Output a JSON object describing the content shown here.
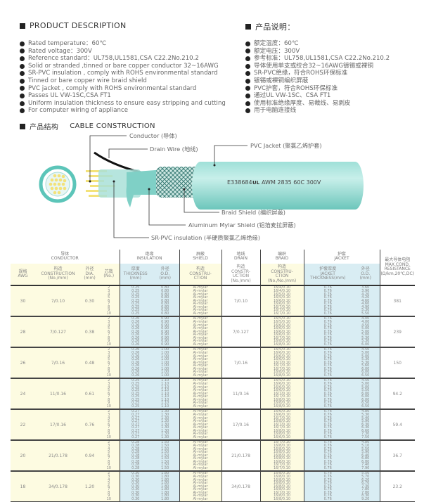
{
  "description_en": {
    "title": "PRODUCT DESCRIPTION",
    "items": [
      "Rated temperature：60℃",
      "Rated voltage：300V",
      "Reference standard：UL758,UL1581,CSA C22.2No.210.2",
      "Solid or stranded ,tinned or bare copper conductor 32~16AWG",
      "SR-PVC insulation , comply with ROHS environmental standard",
      "Tinned or bare copper wire braid shield",
      "PVC jacket , comply with ROHS environmental standard",
      "Passes UL VW-1SC,CSA FT1",
      "Uniform insulation thickness to ensure easy stripping and cutting",
      "For computer wiring of appliance"
    ]
  },
  "description_cn": {
    "title": "产品说明：",
    "items": [
      "额定温度：60℃",
      "额定电压：300V",
      "参考标准：UL758,UL1581,CSA C22.2No.210.2",
      "导体使用单支或绞合32~16AWG镀锡或裸铜",
      "SR-PVC绝缘，符合ROHS环保标准",
      "镀锡或裸铜编织屏蔽",
      "PVC护套，符合ROHS环保标准",
      "通过UL VW-1SC、CSA FT1",
      "使用标准绝缘厚度、易裁线、易剥皮",
      "用于电脑连接线"
    ]
  },
  "construction": {
    "title_cn": "产品结构",
    "title_en": "CABLE CONSTRUCTION",
    "labels": {
      "conductor": "Conductor (导体)",
      "drain": "Drain Wire (地线)",
      "jacket": "PVC Jacket (聚氯乙烯护套)",
      "braid": "Braid Shield (编织屏蔽)",
      "mylar": "Aluminum Mylar Shield (铝箔麦拉屏蔽)",
      "insulation": "SR-PVC insulation (半硬质聚氯乙烯绝缘)"
    },
    "print": {
      "code": "E338684",
      "ul_mark": "UL",
      "rating": "AWM 2835 60C 300V"
    },
    "colors": {
      "jacket": "#7fd3cb",
      "conductor": "#f3e27a",
      "drain": "#111111"
    }
  },
  "table": {
    "groups": {
      "conductor": "导体\nCONDUCTOR",
      "insulation": "绝缘\nINSULATION",
      "shield": "屏蔽\nSHIELD",
      "drain": "地线\nDRAIN",
      "braid": "编织\nBRAID",
      "jacket": "护套\nJACKET"
    },
    "columns": {
      "awg": "规格\nAWG",
      "construction": "构造\nCONSTRUCTION\n(No./mm)",
      "dia": "外径\nDIA.\n(mm)",
      "cores": "芯数\n(No.)",
      "ins_thick": "厚度\nTHICKNESS\n(mm)",
      "ins_od": "外径\nO.D.\n(mm)",
      "shield_cons": "构造\nCONSTRU-\nCTION",
      "drain_cons": "构造\nCONSTR-\nUCTION\n(No./mm)",
      "braid_cons": "构造\nCONSTRU-\nCTION\n(No./No./mm)",
      "jacket_thick": "护套厚度\nJACKET\nTHICKNESS(mm)",
      "jacket_od": "外径\nO.D.\n(mm)",
      "resistance": "最大导体电阻\nMAX.COND.\nRESISTANCE\n(Ω/km,20℃,DC)"
    },
    "rows": [
      {
        "awg": "30",
        "construction": "7/0.10",
        "dia": "0.30",
        "ins_thick": "0.25",
        "ins_od": "0.80",
        "drain": "7/0.10",
        "jacket_thick": "0.76",
        "resistance": "381",
        "braid": [
          "16/4/0.10",
          "16/4/0.10",
          "16/5/0.10",
          "16/5/0.10",
          "16/6/0.10",
          "16/6/0.10",
          "16/7/0.10",
          "16/7/0.10",
          "16/7/0.10"
        ],
        "jacket_od": [
          "3.60",
          "3.90",
          "4.20",
          "4.20",
          "4.60",
          "4.60",
          "4.90",
          "5.30",
          "5.50"
        ]
      },
      {
        "awg": "28",
        "construction": "7/0.127",
        "dia": "0.38",
        "ins_thick": "0.26",
        "ins_od": "0.90",
        "drain": "7/0.127",
        "jacket_thick": "0.76",
        "resistance": "239",
        "braid": [
          "16/5/0.10",
          "16/5/0.10",
          "16/6/0.10",
          "16/6/0.10",
          "16/6/0.10",
          "16/6/0.10",
          "16/7/0.10",
          "16/8/0.10",
          "16/8/0.10"
        ],
        "jacket_od": [
          "4.00",
          "4.00",
          "4.50",
          "5.00",
          "5.00",
          "5.00",
          "5.30",
          "5.30",
          "6.00"
        ]
      },
      {
        "awg": "26",
        "construction": "7/0.16",
        "dia": "0.48",
        "ins_thick": "0.26",
        "ins_od": "1.00",
        "drain": "7/0.16",
        "jacket_thick": "0.76",
        "resistance": "150",
        "braid": [
          "16/5/0.10",
          "16/6/0.10",
          "16/6/0.10",
          "16/6/0.10",
          "16/7/0.10",
          "16/7/0.10",
          "16/7/0.10",
          "16/8/0.10",
          "16/8/0.10"
        ],
        "jacket_od": [
          "4.50",
          "5.00",
          "5.00",
          "5.30",
          "5.30",
          "5.60",
          "6.00",
          "6.00",
          "6.50"
        ]
      },
      {
        "awg": "24",
        "construction": "11/0.16",
        "dia": "0.61",
        "ins_thick": "0.25",
        "ins_od": "1.10",
        "drain": "11/0.16",
        "jacket_thick": "0.76",
        "resistance": "94.2",
        "braid": [
          "16/5/0.10",
          "16/6/0.10",
          "16/6/0.10",
          "16/6/0.10",
          "16/7/0.10",
          "16/7/0.10",
          "16/8/0.10",
          "16/8/0.10",
          "16/8/0.10"
        ],
        "jacket_od": [
          "4.50",
          "5.00",
          "5.00",
          "5.50",
          "6.00",
          "6.00",
          "6.00",
          "6.50",
          "6.50"
        ]
      },
      {
        "awg": "22",
        "construction": "17/0.16",
        "dia": "0.76",
        "ins_thick": "0.27",
        "ins_od": "1.30",
        "drain": "17/0.16",
        "jacket_thick": "0.76",
        "resistance": "59.4",
        "braid": [
          "16/6/0.10",
          "16/6/0.10",
          "16/7/0.10",
          "16/8/0.10",
          "16/7/0.10",
          "16/7/0.10",
          "16/8/0.10",
          "16/8/0.10",
          "16/6/0.10"
        ],
        "jacket_od": [
          "4.80",
          "5.30",
          "5.40",
          "5.90",
          "6.30",
          "6.30",
          "6.60",
          "7.30",
          "7.50"
        ]
      },
      {
        "awg": "20",
        "construction": "21/0.178",
        "dia": "0.94",
        "ins_thick": "0.28",
        "ins_od": "1.50",
        "drain": "21/0.178",
        "jacket_thick": "0.76",
        "resistance": "36.7",
        "braid": [
          "16/7/0.10",
          "16/8/0.10",
          "16/8/0.10",
          "16/8/0.10",
          "16/8/0.10",
          "16/8/0.10",
          "16/8/0.10",
          "16/7/0.10",
          "16/7/0.10"
        ],
        "jacket_od": [
          "4.80",
          "5.10",
          "5.50",
          "5.90",
          "6.40",
          "6.80",
          "6.80",
          "7.40",
          "7.90"
        ]
      },
      {
        "awg": "18",
        "construction": "34/0.178",
        "dia": "1.20",
        "ins_thick": "0.30",
        "ins_od": "1.80",
        "drain": "34/0.178",
        "jacket_thick": "0.76",
        "resistance": "23.2",
        "braid": [
          "16/8/0.10",
          "16/8/0.10",
          "16/8/0.10",
          "16/8/0.10",
          "16/8/0.10",
          "16/8/0.10",
          "16/7/0.10",
          "16/8/0.10",
          "16/8/0.10"
        ],
        "jacket_od": [
          "5.50",
          "5.70",
          "6.20",
          "6.70",
          "7.30",
          "7.80",
          "7.80",
          "8.30",
          "9.20"
        ]
      }
    ],
    "cores": [
      "2",
      "3",
      "4",
      "5",
      "6",
      "7",
      "8",
      "9",
      "10"
    ],
    "shield_value": "Al-mylar"
  }
}
